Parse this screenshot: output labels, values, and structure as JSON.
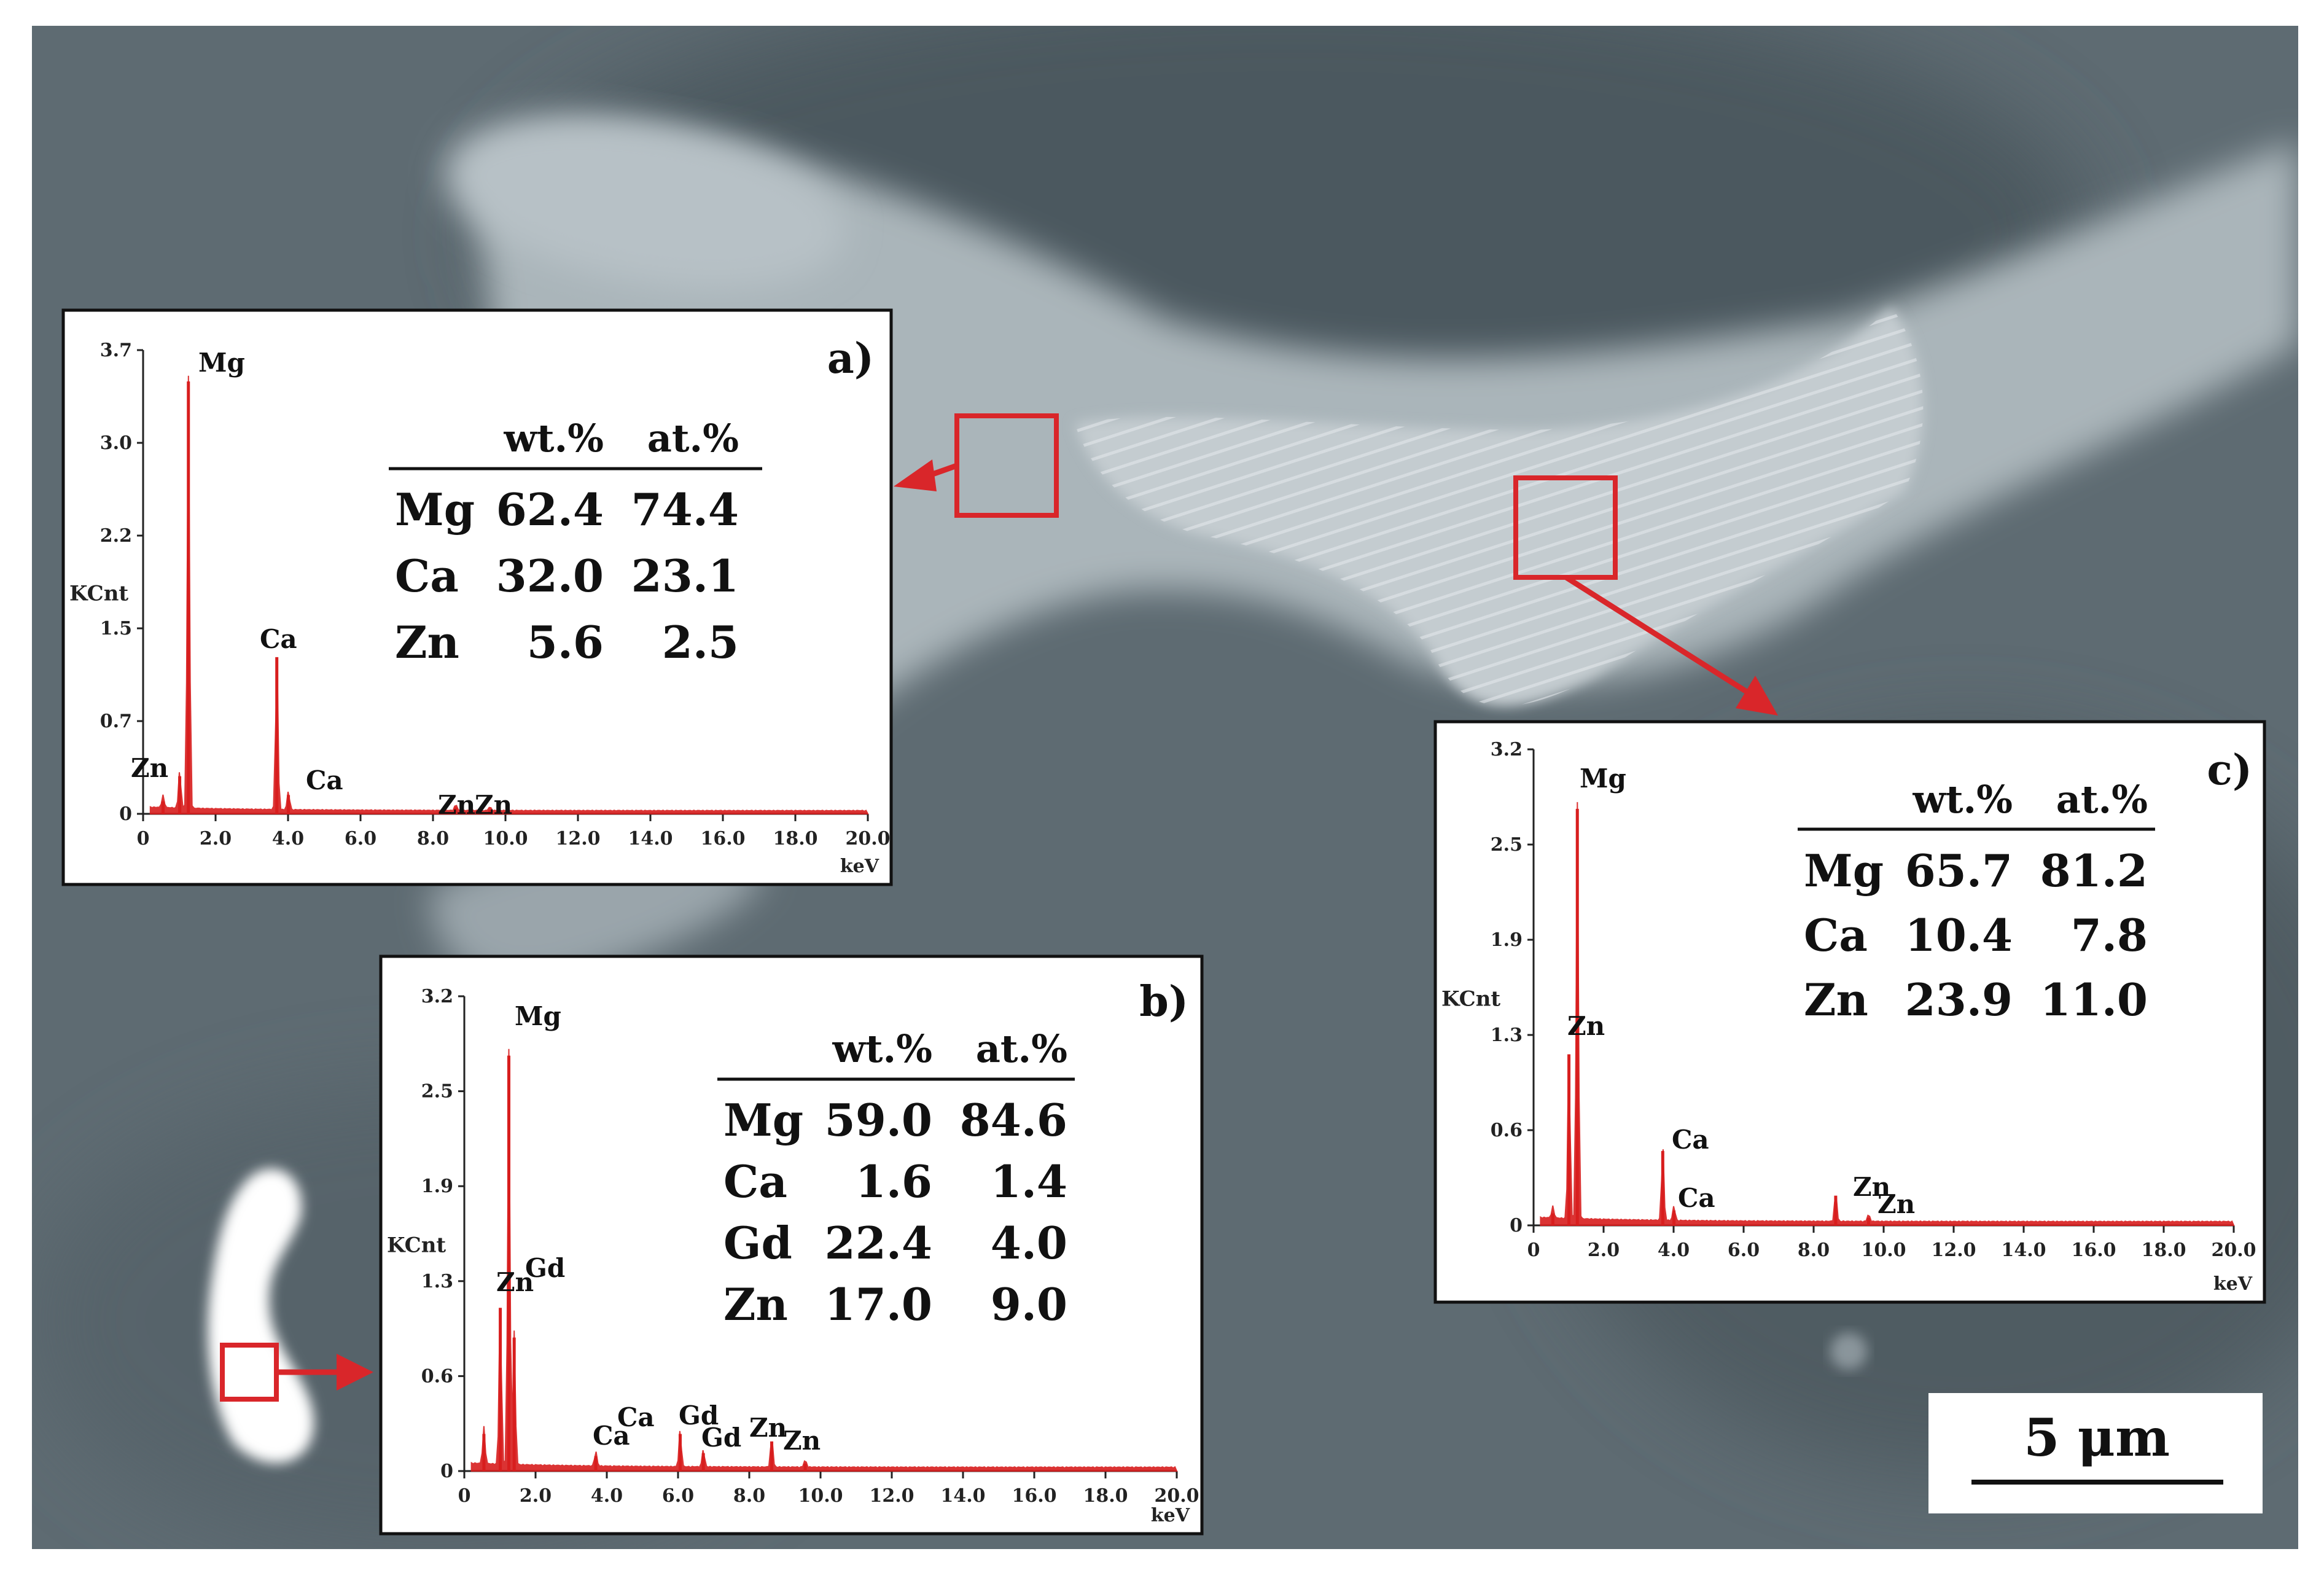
{
  "scale_bar": {
    "label": "5 μm"
  },
  "panels": [
    {
      "id": "a",
      "label": "a)",
      "axis": {
        "ylabel": "KCnt",
        "xlabel": "keV",
        "yticks": [
          "0",
          "0.7",
          "1.5",
          "2.2",
          "3.0",
          "3.7"
        ],
        "xticks": [
          "0",
          "2.0",
          "4.0",
          "6.0",
          "8.0",
          "10.0",
          "12.0",
          "14.0",
          "16.0",
          "18.0",
          "20.0"
        ]
      },
      "table": {
        "headers": [
          "wt.%",
          "at.%"
        ],
        "rows": [
          [
            "Mg",
            "62.4",
            "74.4"
          ],
          [
            "Ca",
            "32.0",
            "23.1"
          ],
          [
            "Zn",
            "5.6",
            "2.5"
          ]
        ]
      },
      "peak_labels": [
        "Mg",
        "Ca",
        "Zn",
        "Ca",
        "Zn",
        "Zn"
      ]
    },
    {
      "id": "b",
      "label": "b)",
      "axis": {
        "ylabel": "KCnt",
        "xlabel": "keV",
        "yticks": [
          "0",
          "0.6",
          "1.3",
          "1.9",
          "2.5",
          "3.2"
        ],
        "xticks": [
          "0",
          "2.0",
          "4.0",
          "6.0",
          "8.0",
          "10.0",
          "12.0",
          "14.0",
          "16.0",
          "18.0",
          "20.0"
        ]
      },
      "table": {
        "headers": [
          "wt.%",
          "at.%"
        ],
        "rows": [
          [
            "Mg",
            "59.0",
            "84.6"
          ],
          [
            "Ca",
            "1.6",
            "1.4"
          ],
          [
            "Gd",
            "22.4",
            "4.0"
          ],
          [
            "Zn",
            "17.0",
            "9.0"
          ]
        ]
      },
      "peak_labels": [
        "Mg",
        "Zn",
        "Gd",
        "Ca",
        "Ca",
        "Gd",
        "Gd",
        "Zn",
        "Zn"
      ]
    },
    {
      "id": "c",
      "label": "c)",
      "axis": {
        "ylabel": "KCnt",
        "xlabel": "keV",
        "yticks": [
          "0",
          "0.6",
          "1.3",
          "1.9",
          "2.5",
          "3.2"
        ],
        "xticks": [
          "0",
          "2.0",
          "4.0",
          "6.0",
          "8.0",
          "10.0",
          "12.0",
          "14.0",
          "16.0",
          "18.0",
          "20.0"
        ]
      },
      "table": {
        "headers": [
          "wt.%",
          "at.%"
        ],
        "rows": [
          [
            "Mg",
            "65.7",
            "81.2"
          ],
          [
            "Ca",
            "10.4",
            "7.8"
          ],
          [
            "Zn",
            "23.9",
            "11.0"
          ]
        ]
      },
      "peak_labels": [
        "Mg",
        "Zn",
        "Ca",
        "Ca",
        "Zn",
        "Zn"
      ]
    }
  ],
  "chart_data": [
    {
      "type": "bar",
      "panel": "a",
      "xlabel": "keV",
      "ylabel": "KCnt",
      "xlim": [
        0,
        20
      ],
      "ylim": [
        0,
        3.7
      ],
      "peaks": [
        {
          "x": 0.55,
          "y": 0.1
        },
        {
          "x": 1.01,
          "y": 0.3
        },
        {
          "x": 1.25,
          "y": 3.45
        },
        {
          "x": 3.69,
          "y": 1.25
        },
        {
          "x": 4.01,
          "y": 0.15
        },
        {
          "x": 8.63,
          "y": 0.05
        },
        {
          "x": 9.57,
          "y": 0.03
        }
      ]
    },
    {
      "type": "bar",
      "panel": "b",
      "xlabel": "keV",
      "ylabel": "KCnt",
      "xlim": [
        0,
        20
      ],
      "ylim": [
        0,
        3.2
      ],
      "peaks": [
        {
          "x": 0.55,
          "y": 0.25
        },
        {
          "x": 1.01,
          "y": 1.1
        },
        {
          "x": 1.25,
          "y": 2.8
        },
        {
          "x": 1.4,
          "y": 0.9
        },
        {
          "x": 3.69,
          "y": 0.1
        },
        {
          "x": 6.06,
          "y": 0.25
        },
        {
          "x": 6.71,
          "y": 0.12
        },
        {
          "x": 8.63,
          "y": 0.2
        },
        {
          "x": 9.57,
          "y": 0.05
        }
      ]
    },
    {
      "type": "bar",
      "panel": "c",
      "xlabel": "keV",
      "ylabel": "KCnt",
      "xlim": [
        0,
        20
      ],
      "ylim": [
        0,
        3.2
      ],
      "peaks": [
        {
          "x": 0.55,
          "y": 0.08
        },
        {
          "x": 1.01,
          "y": 1.15
        },
        {
          "x": 1.25,
          "y": 2.8
        },
        {
          "x": 3.69,
          "y": 0.5
        },
        {
          "x": 4.01,
          "y": 0.1
        },
        {
          "x": 8.63,
          "y": 0.2
        },
        {
          "x": 9.57,
          "y": 0.05
        }
      ]
    }
  ],
  "colors": {
    "marker": "#d9262a",
    "spectrum": "#d81e1e",
    "background_dark": "#55626a",
    "phase_light": "#b4bfc4"
  }
}
